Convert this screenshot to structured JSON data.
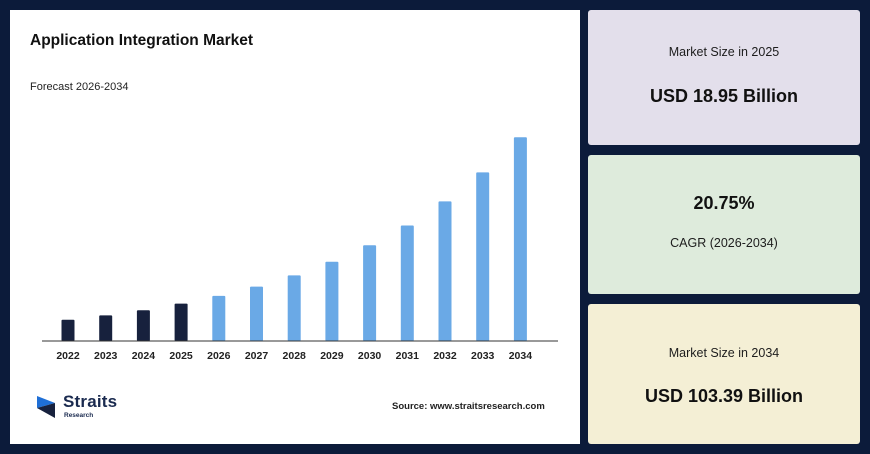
{
  "chart_data": {
    "type": "bar",
    "title": "Application Integration Market",
    "subtitle": "Forecast 2026-2034",
    "categories": [
      "2022",
      "2023",
      "2024",
      "2025",
      "2026",
      "2027",
      "2028",
      "2029",
      "2030",
      "2031",
      "2032",
      "2033",
      "2034"
    ],
    "values": [
      10.8,
      13.0,
      15.6,
      18.95,
      22.9,
      27.6,
      33.3,
      40.2,
      48.6,
      58.6,
      70.8,
      85.5,
      103.39
    ],
    "ylim": [
      0,
      105
    ],
    "historical_color": "#17213d",
    "forecast_color": "#6aa9e6",
    "forecast_start": "2026",
    "grid": false,
    "legend": "none"
  },
  "source": "Source: www.straitsresearch.com",
  "logo": {
    "name": "Straits",
    "sub": "Research"
  },
  "stats": [
    {
      "label": "Market Size in 2025",
      "value": "USD 18.95 Billion"
    },
    {
      "label": "CAGR (2026-2034)",
      "value": "20.75%"
    },
    {
      "label": "Market Size in 2034",
      "value": "USD 103.39 Billion"
    }
  ],
  "colors": {
    "background": "#0c1b3a",
    "card_1": "#e3dfeb",
    "card_2": "#deebdc",
    "card_3": "#f4efd5"
  }
}
